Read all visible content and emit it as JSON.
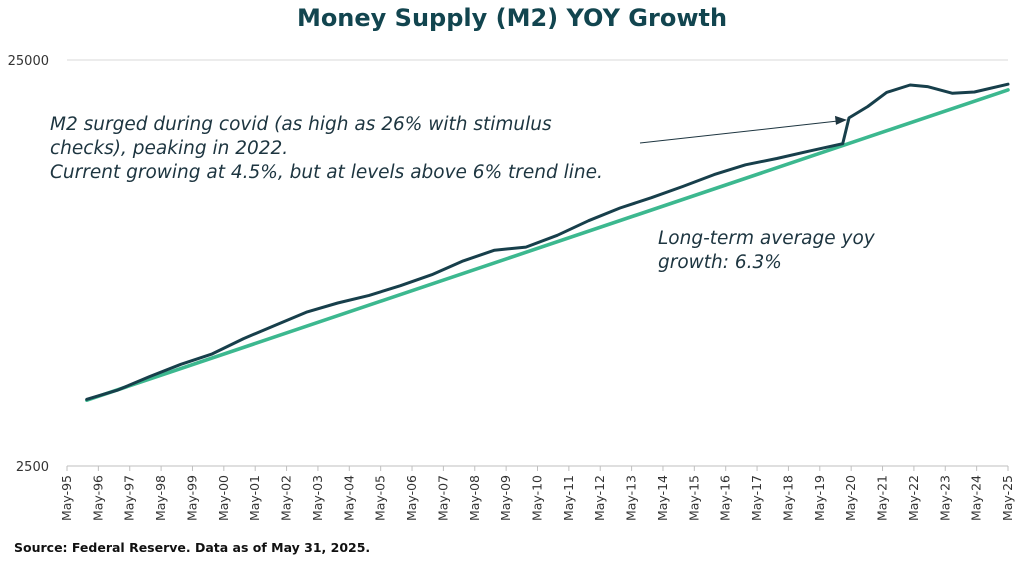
{
  "chart_data": {
    "type": "line",
    "title": "Money Supply (M2) YOY Growth",
    "y_scale": "log",
    "ylim": [
      2500,
      25000
    ],
    "y_ticks": [
      "25000",
      "2500"
    ],
    "x_ticks": [
      "May-95",
      "May-96",
      "May-97",
      "May-98",
      "May-99",
      "May-00",
      "May-01",
      "May-02",
      "May-03",
      "May-04",
      "May-05",
      "May-06",
      "May-07",
      "May-08",
      "May-09",
      "May-10",
      "May-11",
      "May-12",
      "May-13",
      "May-14",
      "May-15",
      "May-16",
      "May-17",
      "May-18",
      "May-19",
      "May-20",
      "May-21",
      "May-22",
      "May-23",
      "May-24",
      "May-25"
    ],
    "xlim": [
      1995.37,
      2025.37
    ],
    "grid": false,
    "series": [
      {
        "name": "M2",
        "color": "#173f4b",
        "points": [
          [
            1996.0,
            3650
          ],
          [
            1997.0,
            3850
          ],
          [
            1998.0,
            4150
          ],
          [
            1999.0,
            4450
          ],
          [
            2000.0,
            4720
          ],
          [
            2001.0,
            5150
          ],
          [
            2002.0,
            5550
          ],
          [
            2003.0,
            5980
          ],
          [
            2004.0,
            6300
          ],
          [
            2005.0,
            6580
          ],
          [
            2006.0,
            6950
          ],
          [
            2007.0,
            7400
          ],
          [
            2008.0,
            8000
          ],
          [
            2009.0,
            8500
          ],
          [
            2010.0,
            8650
          ],
          [
            2011.0,
            9250
          ],
          [
            2012.0,
            10050
          ],
          [
            2013.0,
            10800
          ],
          [
            2014.0,
            11450
          ],
          [
            2015.0,
            12200
          ],
          [
            2016.0,
            13050
          ],
          [
            2017.0,
            13800
          ],
          [
            2018.0,
            14300
          ],
          [
            2019.0,
            14900
          ],
          [
            2020.1,
            15550
          ],
          [
            2020.3,
            18000
          ],
          [
            2020.9,
            19200
          ],
          [
            2021.5,
            20800
          ],
          [
            2022.25,
            21700
          ],
          [
            2022.8,
            21500
          ],
          [
            2023.6,
            20700
          ],
          [
            2024.3,
            20850
          ],
          [
            2025.37,
            21800
          ]
        ]
      },
      {
        "name": "Long-term average yoy growth",
        "color": "#3cb88f",
        "points": [
          [
            1996.0,
            3630
          ],
          [
            2025.37,
            21100
          ]
        ]
      }
    ],
    "annotations": [
      "M2 surged during covid (as high as 26% with stimulus checks), peaking in 2022.",
      "Current growing at 4.5%, but at levels above 6% trend line.",
      "Long-term average yoy growth: 6.3%"
    ]
  },
  "source": "Source: Federal Reserve. Data as of May 31, 2025."
}
